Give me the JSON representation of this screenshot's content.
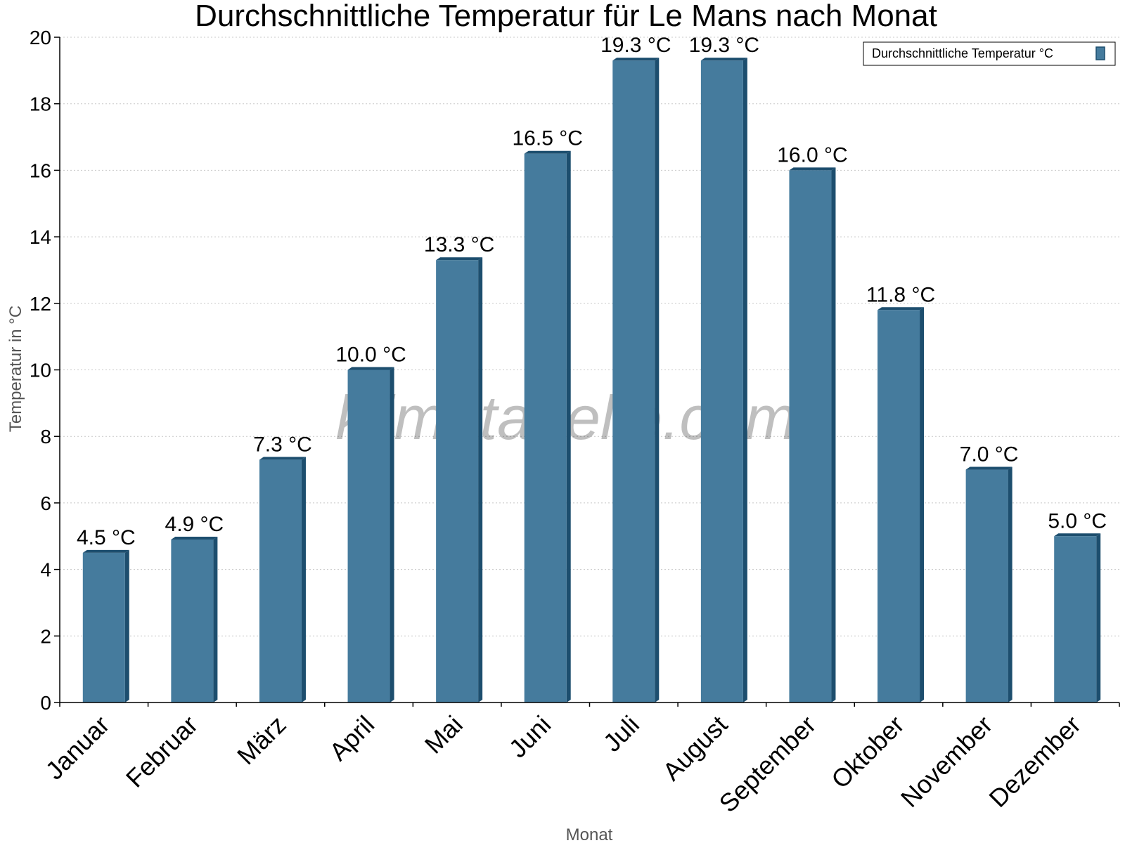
{
  "chart_data": {
    "type": "bar",
    "title": "Durchschnittliche Temperatur für Le Mans nach Monat",
    "xlabel": "Monat",
    "ylabel": "Temperatur in °C",
    "categories": [
      "Januar",
      "Februar",
      "März",
      "April",
      "Mai",
      "Juni",
      "Juli",
      "August",
      "September",
      "Oktober",
      "November",
      "Dezember"
    ],
    "series": [
      {
        "name": "Durchschnittliche Temperatur °C",
        "values": [
          4.5,
          4.9,
          7.3,
          10.0,
          13.3,
          16.5,
          19.3,
          19.3,
          16.0,
          11.8,
          7.0,
          5.0
        ],
        "labels": [
          "4.5 °C",
          "4.9 °C",
          "7.3 °C",
          "10.0 °C",
          "13.3 °C",
          "16.5 °C",
          "19.3 °C",
          "19.3 °C",
          "16.0 °C",
          "11.8 °C",
          "7.0 °C",
          "5.0 °C"
        ]
      }
    ],
    "ylim": [
      0,
      20
    ],
    "yticks": [
      0,
      2,
      4,
      6,
      8,
      10,
      12,
      14,
      16,
      18,
      20
    ],
    "grid": true,
    "legend_position": "top-right",
    "colors": {
      "bar": "#457b9d",
      "bar_side": "#1d4e6e"
    }
  },
  "watermark": "klimatabelle.com"
}
